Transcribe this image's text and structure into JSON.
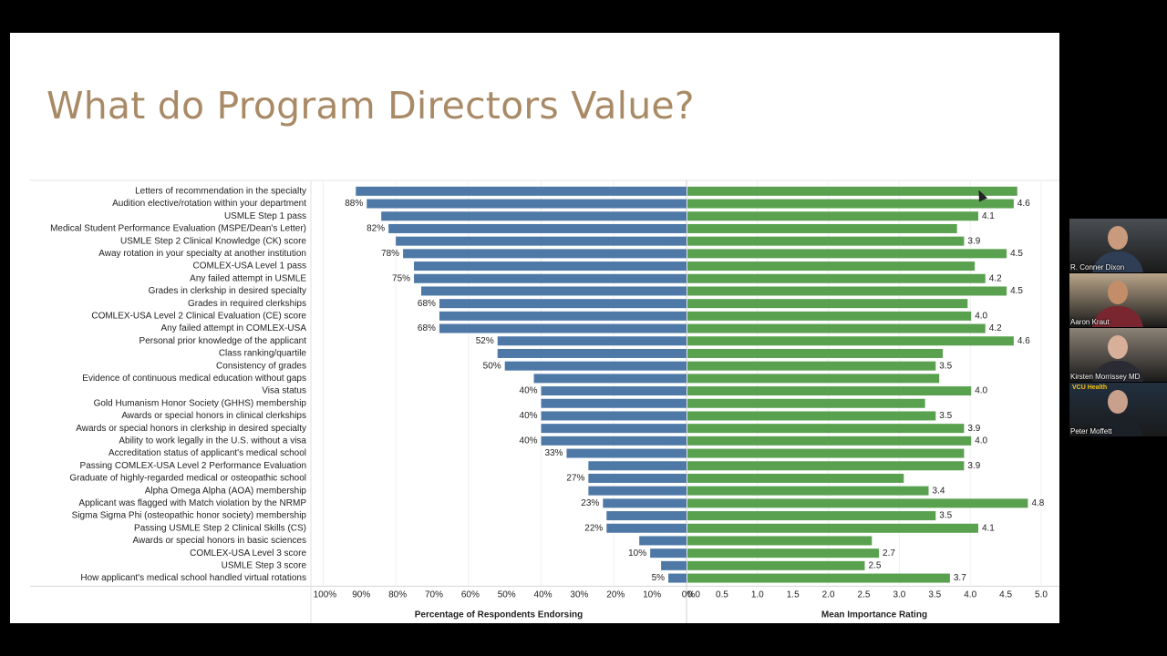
{
  "slide": {
    "title": "What do Program Directors Value?"
  },
  "chart_data": {
    "type": "bar",
    "title": "What do Program Directors Value?",
    "categories": [
      "Letters of recommendation in the specialty",
      "Audition elective/rotation within your department",
      "USMLE Step 1 pass",
      "Medical Student Performance Evaluation (MSPE/Dean's Letter)",
      "USMLE Step 2 Clinical Knowledge (CK) score",
      "Away rotation in your specialty at another institution",
      "COMLEX-USA Level 1 pass",
      "Any failed attempt in USMLE",
      "Grades in clerkship in desired specialty",
      "Grades in required clerkships",
      "COMLEX-USA Level 2 Clinical Evaluation (CE) score",
      "Any failed attempt in COMLEX-USA",
      "Personal prior knowledge of the applicant",
      "Class ranking/quartile",
      "Consistency of grades",
      "Evidence of continuous medical education without gaps",
      "Visa status",
      "Gold Humanism Honor Society (GHHS) membership",
      "Awards or special honors in clinical clerkships",
      "Awards or special honors in clerkship in desired specialty",
      "Ability to work legally in the U.S. without a visa",
      "Accreditation status of applicant's medical school",
      "Passing COMLEX-USA Level 2 Performance Evaluation",
      "Graduate of highly-regarded medical or osteopathic school",
      "Alpha Omega Alpha (AOA) membership",
      "Applicant was flagged with Match violation by the NRMP",
      "Sigma Sigma Phi (osteopathic honor society) membership",
      "Passing USMLE Step 2 Clinical Skills (CS)",
      "Awards or special honors in basic sciences",
      "COMLEX-USA Level 3 score",
      "USMLE Step 3 score",
      "How applicant's medical school handled virtual rotations"
    ],
    "series": [
      {
        "name": "Percentage of Respondents Endorsing",
        "color": "#4e79a7",
        "values": [
          91,
          88,
          84,
          82,
          80,
          78,
          75,
          75,
          73,
          68,
          68,
          68,
          52,
          52,
          50,
          42,
          40,
          40,
          40,
          40,
          40,
          33,
          27,
          27,
          27,
          23,
          22,
          22,
          13,
          10,
          7,
          5
        ],
        "labels": [
          "",
          "88%",
          "",
          "82%",
          "",
          "78%",
          "",
          "75%",
          "",
          "68%",
          "",
          "68%",
          "52%",
          "",
          "50%",
          "",
          "40%",
          "",
          "40%",
          "",
          "40%",
          "33%",
          "",
          "27%",
          "",
          "23%",
          "",
          "22%",
          "",
          "10%",
          "",
          "5%"
        ]
      },
      {
        "name": "Mean Importance Rating",
        "color": "#59a14f",
        "values": [
          4.65,
          4.6,
          4.1,
          3.8,
          3.9,
          4.5,
          4.05,
          4.2,
          4.5,
          3.95,
          4.0,
          4.2,
          4.6,
          3.6,
          3.5,
          3.55,
          4.0,
          3.35,
          3.5,
          3.9,
          4.0,
          3.9,
          3.9,
          3.05,
          3.4,
          4.8,
          3.5,
          4.1,
          2.6,
          2.7,
          2.5,
          3.7
        ],
        "labels": [
          "",
          "4.6",
          "4.1",
          "",
          "3.9",
          "4.5",
          "",
          "4.2",
          "4.5",
          "",
          "4.0",
          "4.2",
          "4.6",
          "",
          "3.5",
          "",
          "4.0",
          "",
          "3.5",
          "3.9",
          "4.0",
          "",
          "3.9",
          "",
          "3.4",
          "4.8",
          "3.5",
          "4.1",
          "",
          "2.7",
          "2.5",
          "3.7"
        ]
      }
    ],
    "left_axis": {
      "title": "Percentage of Respondents Endorsing",
      "ticks": [
        "100%",
        "90%",
        "80%",
        "70%",
        "60%",
        "50%",
        "40%",
        "30%",
        "20%",
        "10%",
        "0%"
      ],
      "range": [
        0,
        100
      ],
      "reversed": true
    },
    "right_axis": {
      "title": "Mean Importance Rating",
      "ticks": [
        "0.0",
        "0.5",
        "1.0",
        "1.5",
        "2.0",
        "2.5",
        "3.0",
        "3.5",
        "4.0",
        "4.5",
        "5.0"
      ],
      "range": [
        0,
        5
      ]
    },
    "grid": true
  },
  "participants": [
    {
      "name": "R. Conner Dixon",
      "bg": "#4a4f55",
      "skin": "#c99a7c",
      "shirt": "#2f3e55"
    },
    {
      "name": "Aaron Kraut",
      "bg": "#b9a58a",
      "skin": "#c48d6a",
      "shirt": "#7a2630"
    },
    {
      "name": "Kirsten Morrissey MD",
      "bg": "#8c8276",
      "skin": "#d8b09a",
      "shirt": "#2a2b33"
    },
    {
      "name": "Peter Moffett",
      "bg": "#22303f",
      "skin": "#c8a08c",
      "shirt": "#1c2027",
      "logo": "VCU Health"
    }
  ]
}
